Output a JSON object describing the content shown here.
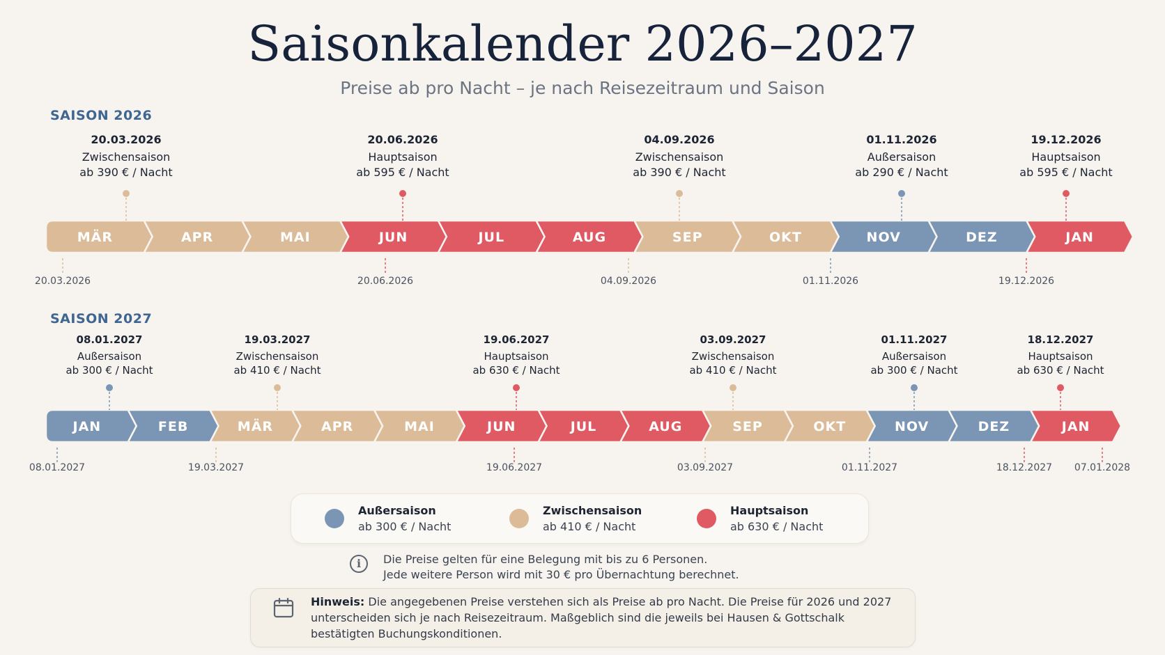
{
  "title": "Saisonkalender 2026–2027",
  "subtitle": "Preise ab pro Nacht – je nach Reisezeitraum und Saison",
  "colors": {
    "aussersaison": "#7b95b5",
    "zwischensaison": "#dcbc98",
    "hauptsaison": "#e05a63"
  },
  "seasons": [
    {
      "label": "SAISON 2026",
      "months": [
        {
          "label": "MÄR",
          "type": "zwischensaison"
        },
        {
          "label": "APR",
          "type": "zwischensaison"
        },
        {
          "label": "MAI",
          "type": "zwischensaison"
        },
        {
          "label": "JUN",
          "type": "hauptsaison"
        },
        {
          "label": "JUL",
          "type": "hauptsaison"
        },
        {
          "label": "AUG",
          "type": "hauptsaison"
        },
        {
          "label": "SEP",
          "type": "zwischensaison"
        },
        {
          "label": "OKT",
          "type": "zwischensaison"
        },
        {
          "label": "NOV",
          "type": "aussersaison"
        },
        {
          "label": "DEZ",
          "type": "aussersaison"
        },
        {
          "label": "JAN",
          "type": "hauptsaison"
        }
      ],
      "markers": [
        {
          "date": "20.03.2026",
          "season": "Zwischensaison",
          "price": "ab 390 € / Nacht",
          "type": "zwischensaison"
        },
        {
          "date": "20.06.2026",
          "season": "Hauptsaison",
          "price": "ab 595 € / Nacht",
          "type": "hauptsaison"
        },
        {
          "date": "04.09.2026",
          "season": "Zwischensaison",
          "price": "ab 390 € / Nacht",
          "type": "zwischensaison"
        },
        {
          "date": "01.11.2026",
          "season": "Außersaison",
          "price": "ab 290 € / Nacht",
          "type": "aussersaison"
        },
        {
          "date": "19.12.2026",
          "season": "Hauptsaison",
          "price": "ab 595 € / Nacht",
          "type": "hauptsaison"
        }
      ],
      "bottom_dates": [
        {
          "date": "20.03.2026",
          "type": "zwischensaison"
        },
        {
          "date": "20.06.2026",
          "type": "hauptsaison"
        },
        {
          "date": "04.09.2026",
          "type": "zwischensaison"
        },
        {
          "date": "01.11.2026",
          "type": "aussersaison"
        },
        {
          "date": "19.12.2026",
          "type": "hauptsaison"
        }
      ]
    },
    {
      "label": "SAISON 2027",
      "months": [
        {
          "label": "JAN",
          "type": "aussersaison"
        },
        {
          "label": "FEB",
          "type": "aussersaison"
        },
        {
          "label": "MÄR",
          "type": "zwischensaison"
        },
        {
          "label": "APR",
          "type": "zwischensaison"
        },
        {
          "label": "MAI",
          "type": "zwischensaison"
        },
        {
          "label": "JUN",
          "type": "hauptsaison"
        },
        {
          "label": "JUL",
          "type": "hauptsaison"
        },
        {
          "label": "AUG",
          "type": "hauptsaison"
        },
        {
          "label": "SEP",
          "type": "zwischensaison"
        },
        {
          "label": "OKT",
          "type": "zwischensaison"
        },
        {
          "label": "NOV",
          "type": "aussersaison"
        },
        {
          "label": "DEZ",
          "type": "aussersaison"
        },
        {
          "label": "JAN",
          "type": "hauptsaison"
        }
      ],
      "markers": [
        {
          "date": "08.01.2027",
          "season": "Außersaison",
          "price": "ab 300 € / Nacht",
          "type": "aussersaison"
        },
        {
          "date": "19.03.2027",
          "season": "Zwischensaison",
          "price": "ab 410 € / Nacht",
          "type": "zwischensaison"
        },
        {
          "date": "19.06.2027",
          "season": "Hauptsaison",
          "price": "ab 630 € / Nacht",
          "type": "hauptsaison"
        },
        {
          "date": "03.09.2027",
          "season": "Zwischensaison",
          "price": "ab 410 € / Nacht",
          "type": "zwischensaison"
        },
        {
          "date": "01.11.2027",
          "season": "Außersaison",
          "price": "ab 300 € / Nacht",
          "type": "aussersaison"
        },
        {
          "date": "18.12.2027",
          "season": "Hauptsaison",
          "price": "ab 630 € / Nacht",
          "type": "hauptsaison"
        }
      ],
      "bottom_dates": [
        {
          "date": "08.01.2027",
          "type": "aussersaison"
        },
        {
          "date": "19.03.2027",
          "type": "zwischensaison"
        },
        {
          "date": "19.06.2027",
          "type": "hauptsaison"
        },
        {
          "date": "03.09.2027",
          "type": "zwischensaison"
        },
        {
          "date": "01.11.2027",
          "type": "aussersaison"
        },
        {
          "date": "18.12.2027",
          "type": "hauptsaison"
        },
        {
          "date": "07.01.2028",
          "type": "hauptsaison"
        }
      ]
    }
  ],
  "legend": [
    {
      "name": "Außersaison",
      "price": "ab 300 € / Nacht",
      "type": "aussersaison"
    },
    {
      "name": "Zwischensaison",
      "price": "ab 410 € / Nacht",
      "type": "zwischensaison"
    },
    {
      "name": "Hauptsaison",
      "price": "ab 630 € / Nacht",
      "type": "hauptsaison"
    }
  ],
  "info": {
    "line1": "Die Preise gelten für eine Belegung mit bis zu 6 Personen.",
    "line2": "Jede weitere Person wird mit 30 € pro Übernachtung berechnet."
  },
  "note": {
    "label": "Hinweis:",
    "text": "Die angegebenen Preise verstehen sich als Preise ab pro Nacht. Die Preise für 2026 und 2027 unterscheiden sich je nach Reisezeitraum. Maßgeblich sind die jeweils bei Hausen & Gottschalk bestätigten Buchungskonditionen."
  }
}
